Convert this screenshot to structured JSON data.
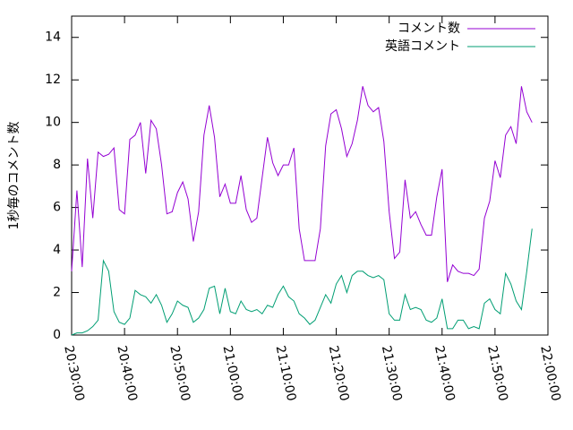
{
  "chart_data": {
    "type": "line",
    "ylabel": "1秒毎のコメント数",
    "x": [
      "20:30:00",
      "20:31:00",
      "20:32:00",
      "20:33:00",
      "20:34:00",
      "20:35:00",
      "20:36:00",
      "20:37:00",
      "20:38:00",
      "20:39:00",
      "20:40:00",
      "20:41:00",
      "20:42:00",
      "20:43:00",
      "20:44:00",
      "20:45:00",
      "20:46:00",
      "20:47:00",
      "20:48:00",
      "20:49:00",
      "20:50:00",
      "20:51:00",
      "20:52:00",
      "20:53:00",
      "20:54:00",
      "20:55:00",
      "20:56:00",
      "20:57:00",
      "20:58:00",
      "20:59:00",
      "21:00:00",
      "21:01:00",
      "21:02:00",
      "21:03:00",
      "21:04:00",
      "21:05:00",
      "21:06:00",
      "21:07:00",
      "21:08:00",
      "21:09:00",
      "21:10:00",
      "21:11:00",
      "21:12:00",
      "21:13:00",
      "21:14:00",
      "21:15:00",
      "21:16:00",
      "21:17:00",
      "21:18:00",
      "21:19:00",
      "21:20:00",
      "21:21:00",
      "21:22:00",
      "21:23:00",
      "21:24:00",
      "21:25:00",
      "21:26:00",
      "21:27:00",
      "21:28:00",
      "21:29:00",
      "21:30:00",
      "21:31:00",
      "21:32:00",
      "21:33:00",
      "21:34:00",
      "21:35:00",
      "21:36:00",
      "21:37:00",
      "21:38:00",
      "21:39:00",
      "21:40:00",
      "21:41:00",
      "21:42:00",
      "21:43:00",
      "21:44:00",
      "21:45:00",
      "21:46:00",
      "21:47:00",
      "21:48:00",
      "21:49:00",
      "21:50:00",
      "21:51:00",
      "21:52:00",
      "21:53:00",
      "21:54:00",
      "21:55:00",
      "21:56:00",
      "21:57:00"
    ],
    "series": [
      {
        "name": "コメント数",
        "color": "#9400d3",
        "values": [
          3.0,
          6.8,
          3.2,
          8.3,
          5.5,
          8.6,
          8.4,
          8.5,
          8.8,
          5.9,
          5.7,
          9.2,
          9.4,
          10.0,
          7.6,
          10.1,
          9.7,
          8.0,
          5.7,
          5.8,
          6.7,
          7.2,
          6.4,
          4.4,
          5.8,
          9.4,
          10.8,
          9.3,
          6.5,
          7.1,
          6.2,
          6.2,
          7.5,
          5.9,
          5.3,
          5.5,
          7.4,
          9.3,
          8.1,
          7.5,
          8.0,
          8.0,
          8.8,
          5.0,
          3.5,
          3.5,
          3.5,
          5.0,
          8.9,
          10.4,
          10.6,
          9.7,
          8.4,
          9.0,
          10.1,
          11.7,
          10.8,
          10.5,
          10.7,
          9.1,
          5.8,
          3.6,
          3.9,
          7.3,
          5.5,
          5.8,
          5.2,
          4.7,
          4.7,
          6.5,
          7.8,
          2.5,
          3.3,
          3.0,
          2.9,
          2.9,
          2.8,
          3.1,
          5.5,
          6.3,
          8.2,
          7.4,
          9.4,
          9.8,
          9.0,
          11.7,
          10.5,
          10.0
        ]
      },
      {
        "name": "英語コメント",
        "color": "#009e73",
        "values": [
          0.0,
          0.1,
          0.1,
          0.2,
          0.4,
          0.7,
          3.5,
          3.0,
          1.1,
          0.6,
          0.5,
          0.8,
          2.1,
          1.9,
          1.8,
          1.5,
          1.9,
          1.4,
          0.6,
          1.0,
          1.6,
          1.4,
          1.3,
          0.6,
          0.8,
          1.2,
          2.2,
          2.3,
          1.0,
          2.2,
          1.1,
          1.0,
          1.6,
          1.2,
          1.1,
          1.2,
          1.0,
          1.4,
          1.3,
          1.9,
          2.3,
          1.8,
          1.6,
          1.0,
          0.8,
          0.5,
          0.7,
          1.3,
          1.9,
          1.5,
          2.4,
          2.8,
          2.0,
          2.8,
          3.0,
          3.0,
          2.8,
          2.7,
          2.8,
          2.6,
          1.0,
          0.7,
          0.7,
          1.9,
          1.2,
          1.3,
          1.2,
          0.7,
          0.6,
          0.8,
          1.7,
          0.3,
          0.3,
          0.7,
          0.7,
          0.3,
          0.4,
          0.3,
          1.5,
          1.7,
          1.2,
          1.0,
          2.9,
          2.4,
          1.6,
          1.2,
          3.0,
          5.0
        ]
      }
    ],
    "xlim": [
      "20:30:00",
      "22:00:00"
    ],
    "xticks": [
      "20:30:00",
      "20:40:00",
      "20:50:00",
      "21:00:00",
      "21:10:00",
      "21:20:00",
      "21:30:00",
      "21:40:00",
      "21:50:00",
      "22:00:00"
    ],
    "ylim": [
      0,
      15
    ],
    "yticks": [
      0,
      2,
      4,
      6,
      8,
      10,
      12,
      14
    ],
    "legend": "top-right"
  }
}
